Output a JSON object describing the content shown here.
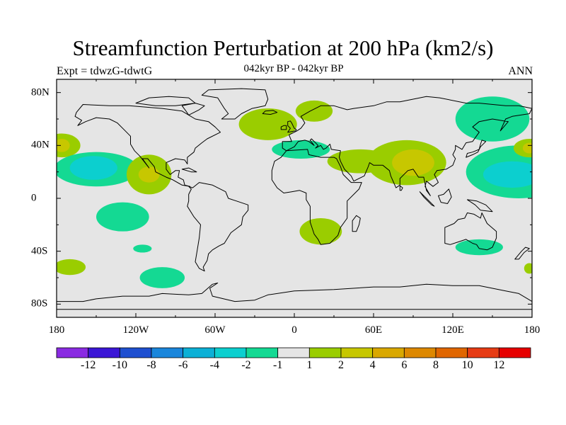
{
  "title": "Streamfunction Perturbation at 200 hPa (km2/s)",
  "subtitle_left": "Expt = tdwzG-tdwtG",
  "subtitle_center": "042kyr BP - 042kyr BP",
  "subtitle_right": "ANN",
  "map": {
    "background_color": "#e5e5e5",
    "lon_range": [
      -180,
      180
    ],
    "lat_range": [
      -90,
      90
    ],
    "x_ticks": [
      {
        "lon": -180,
        "label": "180"
      },
      {
        "lon": -120,
        "label": "120W"
      },
      {
        "lon": -60,
        "label": "60W"
      },
      {
        "lon": 0,
        "label": "0"
      },
      {
        "lon": 60,
        "label": "60E"
      },
      {
        "lon": 120,
        "label": "120E"
      },
      {
        "lon": 180,
        "label": "180"
      }
    ],
    "y_ticks": [
      {
        "lat": 80,
        "label": "80N"
      },
      {
        "lat": 40,
        "label": "40N"
      },
      {
        "lat": 0,
        "label": "0"
      },
      {
        "lat": -40,
        "label": "40S"
      },
      {
        "lat": -80,
        "label": "80S"
      }
    ]
  },
  "colorbar": {
    "colors": [
      "#8a2be2",
      "#3b16d6",
      "#1e4fd0",
      "#1a86db",
      "#0cb0d6",
      "#0ccfcf",
      "#14d993",
      "#e5e5e5",
      "#9acd00",
      "#c7c700",
      "#d9a800",
      "#dd8800",
      "#e06600",
      "#e63b14",
      "#e60000"
    ],
    "labels": [
      "-12",
      "-10",
      "-8",
      "-6",
      "-4",
      "-2",
      "-1",
      "1",
      "2",
      "4",
      "6",
      "8",
      "10",
      "12"
    ]
  },
  "anomalies": [
    {
      "lon": -176,
      "lat": 40,
      "rlon": 14,
      "rlat": 9,
      "level": 2
    },
    {
      "lon": -176,
      "lat": 40,
      "rlon": 6,
      "rlat": 5,
      "level": 4
    },
    {
      "lon": -150,
      "lat": 22,
      "rlon": 32,
      "rlat": 13,
      "level": -1
    },
    {
      "lon": -152,
      "lat": 23,
      "rlon": 18,
      "rlat": 9,
      "level": -2
    },
    {
      "lon": -110,
      "lat": 18,
      "rlon": 17,
      "rlat": 15,
      "level": 2
    },
    {
      "lon": -110,
      "lat": 18,
      "rlon": 8,
      "rlat": 6,
      "level": 4
    },
    {
      "lon": -130,
      "lat": -14,
      "rlon": 20,
      "rlat": 11,
      "level": -1
    },
    {
      "lon": -115,
      "lat": -38,
      "rlon": 7,
      "rlat": 3,
      "level": -1
    },
    {
      "lon": -170,
      "lat": -52,
      "rlon": 12,
      "rlat": 6,
      "level": 2
    },
    {
      "lon": -100,
      "lat": -60,
      "rlon": 17,
      "rlat": 8,
      "level": -1
    },
    {
      "lon": -20,
      "lat": 56,
      "rlon": 22,
      "rlat": 12,
      "level": 2
    },
    {
      "lon": 15,
      "lat": 66,
      "rlon": 14,
      "rlat": 8,
      "level": 2
    },
    {
      "lon": 5,
      "lat": 37,
      "rlon": 22,
      "rlat": 7,
      "level": -1
    },
    {
      "lon": 50,
      "lat": 28,
      "rlon": 25,
      "rlat": 9,
      "level": 2
    },
    {
      "lon": 85,
      "lat": 27,
      "rlon": 30,
      "rlat": 17,
      "level": 2
    },
    {
      "lon": 90,
      "lat": 27,
      "rlon": 16,
      "rlat": 10,
      "level": 4
    },
    {
      "lon": 150,
      "lat": 60,
      "rlon": 28,
      "rlat": 17,
      "level": -1
    },
    {
      "lon": 20,
      "lat": -25,
      "rlon": 16,
      "rlat": 10,
      "level": 2
    },
    {
      "lon": 170,
      "lat": 20,
      "rlon": 40,
      "rlat": 20,
      "level": -1
    },
    {
      "lon": 165,
      "lat": 18,
      "rlon": 22,
      "rlat": 10,
      "level": -2
    },
    {
      "lon": 178,
      "lat": 38,
      "rlon": 12,
      "rlat": 7,
      "level": 2
    },
    {
      "lon": 178,
      "lat": 38,
      "rlon": 5,
      "rlat": 4,
      "level": 4
    },
    {
      "lon": 140,
      "lat": -37,
      "rlon": 18,
      "rlat": 6,
      "level": -1
    },
    {
      "lon": 178,
      "lat": -53,
      "rlon": 4,
      "rlat": 4,
      "level": 2
    }
  ],
  "level_colors": {
    "-2": "#0ccfcf",
    "-1": "#14d993",
    "2": "#9acd00",
    "4": "#c7c700"
  },
  "continents": {
    "north_america": [
      [
        -165,
        65
      ],
      [
        -160,
        71
      ],
      [
        -140,
        70
      ],
      [
        -125,
        70
      ],
      [
        -100,
        68
      ],
      [
        -85,
        66
      ],
      [
        -80,
        63
      ],
      [
        -75,
        60
      ],
      [
        -65,
        58
      ],
      [
        -60,
        54
      ],
      [
        -56,
        50
      ],
      [
        -66,
        45
      ],
      [
        -70,
        42
      ],
      [
        -75,
        38
      ],
      [
        -76,
        35
      ],
      [
        -81,
        31
      ],
      [
        -81,
        26
      ],
      [
        -83,
        29
      ],
      [
        -90,
        30
      ],
      [
        -97,
        27
      ],
      [
        -97,
        22
      ],
      [
        -94,
        18
      ],
      [
        -90,
        21
      ],
      [
        -87,
        21
      ],
      [
        -88,
        16
      ],
      [
        -84,
        14
      ],
      [
        -83,
        10
      ],
      [
        -79,
        9
      ],
      [
        -85,
        10
      ],
      [
        -92,
        14
      ],
      [
        -97,
        16
      ],
      [
        -105,
        20
      ],
      [
        -106,
        24
      ],
      [
        -111,
        30
      ],
      [
        -115,
        30
      ],
      [
        -110,
        23
      ],
      [
        -117,
        32
      ],
      [
        -121,
        36
      ],
      [
        -124,
        41
      ],
      [
        -124,
        47
      ],
      [
        -128,
        51
      ],
      [
        -134,
        57
      ],
      [
        -140,
        60
      ],
      [
        -150,
        61
      ],
      [
        -158,
        58
      ],
      [
        -164,
        55
      ],
      [
        -161,
        59
      ],
      [
        -166,
        62
      ]
    ],
    "greenland": [
      [
        -55,
        60
      ],
      [
        -50,
        64
      ],
      [
        -53,
        68
      ],
      [
        -58,
        76
      ],
      [
        -70,
        78
      ],
      [
        -65,
        82
      ],
      [
        -40,
        83
      ],
      [
        -22,
        82
      ],
      [
        -20,
        75
      ],
      [
        -22,
        70
      ],
      [
        -32,
        68
      ],
      [
        -40,
        64
      ],
      [
        -45,
        60
      ]
    ],
    "south_america": [
      [
        -80,
        9
      ],
      [
        -77,
        8
      ],
      [
        -72,
        12
      ],
      [
        -62,
        10
      ],
      [
        -52,
        5
      ],
      [
        -50,
        0
      ],
      [
        -44,
        -2
      ],
      [
        -35,
        -5
      ],
      [
        -35,
        -9
      ],
      [
        -39,
        -14
      ],
      [
        -40,
        -20
      ],
      [
        -44,
        -23
      ],
      [
        -48,
        -26
      ],
      [
        -53,
        -34
      ],
      [
        -57,
        -36
      ],
      [
        -62,
        -39
      ],
      [
        -65,
        -42
      ],
      [
        -66,
        -47
      ],
      [
        -69,
        -52
      ],
      [
        -68,
        -55
      ],
      [
        -72,
        -53
      ],
      [
        -75,
        -48
      ],
      [
        -74,
        -42
      ],
      [
        -72,
        -30
      ],
      [
        -71,
        -20
      ],
      [
        -76,
        -14
      ],
      [
        -81,
        -6
      ],
      [
        -80,
        -2
      ],
      [
        -80,
        3
      ],
      [
        -78,
        7
      ]
    ],
    "africa": [
      [
        -17,
        21
      ],
      [
        -15,
        28
      ],
      [
        -10,
        31
      ],
      [
        -6,
        36
      ],
      [
        10,
        37
      ],
      [
        11,
        33
      ],
      [
        20,
        31
      ],
      [
        30,
        31
      ],
      [
        32,
        30
      ],
      [
        35,
        24
      ],
      [
        37,
        18
      ],
      [
        43,
        12
      ],
      [
        51,
        12
      ],
      [
        49,
        7
      ],
      [
        40,
        -2
      ],
      [
        40,
        -10
      ],
      [
        40,
        -15
      ],
      [
        35,
        -22
      ],
      [
        33,
        -28
      ],
      [
        27,
        -34
      ],
      [
        20,
        -35
      ],
      [
        18,
        -31
      ],
      [
        15,
        -27
      ],
      [
        12,
        -18
      ],
      [
        12,
        -6
      ],
      [
        9,
        -1
      ],
      [
        9,
        4
      ],
      [
        4,
        6
      ],
      [
        -2,
        5
      ],
      [
        -8,
        4
      ],
      [
        -13,
        8
      ],
      [
        -17,
        14
      ]
    ],
    "eurasia": [
      [
        -9,
        38
      ],
      [
        -9,
        43
      ],
      [
        -2,
        43
      ],
      [
        -4,
        48
      ],
      [
        2,
        51
      ],
      [
        5,
        53
      ],
      [
        8,
        57
      ],
      [
        5,
        62
      ],
      [
        12,
        66
      ],
      [
        20,
        70
      ],
      [
        30,
        70
      ],
      [
        40,
        67
      ],
      [
        45,
        68
      ],
      [
        60,
        70
      ],
      [
        70,
        73
      ],
      [
        80,
        73
      ],
      [
        100,
        77
      ],
      [
        110,
        76
      ],
      [
        130,
        72
      ],
      [
        140,
        72
      ],
      [
        160,
        70
      ],
      [
        170,
        70
      ],
      [
        180,
        68
      ],
      [
        178,
        64
      ],
      [
        165,
        62
      ],
      [
        160,
        60
      ],
      [
        156,
        51
      ],
      [
        162,
        58
      ],
      [
        150,
        60
      ],
      [
        140,
        58
      ],
      [
        135,
        54
      ],
      [
        140,
        50
      ],
      [
        135,
        43
      ],
      [
        130,
        42
      ],
      [
        127,
        37
      ],
      [
        122,
        40
      ],
      [
        122,
        37
      ],
      [
        120,
        33
      ],
      [
        122,
        30
      ],
      [
        120,
        25
      ],
      [
        115,
        22
      ],
      [
        108,
        21
      ],
      [
        106,
        18
      ],
      [
        109,
        12
      ],
      [
        105,
        9
      ],
      [
        100,
        13
      ],
      [
        99,
        9
      ],
      [
        103,
        2
      ],
      [
        100,
        6
      ],
      [
        98,
        16
      ],
      [
        94,
        16
      ],
      [
        90,
        22
      ],
      [
        86,
        21
      ],
      [
        80,
        15
      ],
      [
        80,
        10
      ],
      [
        77,
        8
      ],
      [
        73,
        17
      ],
      [
        72,
        21
      ],
      [
        67,
        25
      ],
      [
        60,
        25
      ],
      [
        57,
        27
      ],
      [
        56,
        24
      ],
      [
        53,
        17
      ],
      [
        45,
        13
      ],
      [
        43,
        17
      ],
      [
        38,
        22
      ],
      [
        35,
        28
      ],
      [
        34,
        31
      ],
      [
        35,
        36
      ],
      [
        28,
        37
      ],
      [
        27,
        41
      ],
      [
        24,
        38
      ],
      [
        22,
        37
      ],
      [
        20,
        40
      ],
      [
        16,
        38
      ],
      [
        18,
        40
      ],
      [
        13,
        45
      ],
      [
        12,
        44
      ],
      [
        15,
        40
      ],
      [
        11,
        43
      ],
      [
        8,
        44
      ],
      [
        3,
        43
      ],
      [
        0,
        39
      ],
      [
        -6,
        36
      ]
    ],
    "australia": [
      [
        114,
        -22
      ],
      [
        114,
        -34
      ],
      [
        118,
        -35
      ],
      [
        124,
        -33
      ],
      [
        130,
        -31
      ],
      [
        135,
        -34
      ],
      [
        138,
        -35
      ],
      [
        140,
        -38
      ],
      [
        146,
        -39
      ],
      [
        150,
        -37
      ],
      [
        153,
        -30
      ],
      [
        153,
        -25
      ],
      [
        146,
        -19
      ],
      [
        142,
        -11
      ],
      [
        141,
        -15
      ],
      [
        136,
        -12
      ],
      [
        131,
        -11
      ],
      [
        129,
        -15
      ],
      [
        124,
        -16
      ],
      [
        121,
        -19
      ]
    ],
    "antarctica": [
      [
        -180,
        -84
      ],
      [
        -180,
        -78
      ],
      [
        -160,
        -78
      ],
      [
        -150,
        -76
      ],
      [
        -130,
        -74
      ],
      [
        -110,
        -74
      ],
      [
        -100,
        -72
      ],
      [
        -80,
        -73
      ],
      [
        -70,
        -72
      ],
      [
        -62,
        -65
      ],
      [
        -58,
        -64
      ],
      [
        -64,
        -68
      ],
      [
        -62,
        -74
      ],
      [
        -45,
        -78
      ],
      [
        -30,
        -77
      ],
      [
        -20,
        -73
      ],
      [
        0,
        -70
      ],
      [
        30,
        -69
      ],
      [
        60,
        -67
      ],
      [
        80,
        -67
      ],
      [
        100,
        -65
      ],
      [
        120,
        -66
      ],
      [
        140,
        -66
      ],
      [
        160,
        -70
      ],
      [
        170,
        -72
      ],
      [
        180,
        -78
      ],
      [
        180,
        -84
      ]
    ],
    "uk": [
      [
        -5,
        50
      ],
      [
        -3,
        53
      ],
      [
        -5,
        55
      ],
      [
        -5,
        58
      ],
      [
        -3,
        58.5
      ],
      [
        -2,
        57
      ],
      [
        -1,
        55
      ],
      [
        0,
        53
      ],
      [
        1.5,
        52
      ],
      [
        1,
        51
      ]
    ],
    "ireland": [
      [
        -10,
        52
      ],
      [
        -10,
        54
      ],
      [
        -8,
        55
      ],
      [
        -6,
        55
      ],
      [
        -6,
        52
      ]
    ],
    "iceland": [
      [
        -24,
        64
      ],
      [
        -22,
        66
      ],
      [
        -16,
        66.5
      ],
      [
        -13,
        65
      ],
      [
        -18,
        63.5
      ]
    ],
    "japan": [
      [
        130,
        31
      ],
      [
        131,
        34
      ],
      [
        135,
        35
      ],
      [
        140,
        37
      ],
      [
        141,
        41
      ],
      [
        142,
        44
      ],
      [
        145,
        43
      ],
      [
        141,
        39
      ],
      [
        139,
        35
      ],
      [
        135,
        33
      ]
    ],
    "madagascar": [
      [
        44,
        -25
      ],
      [
        44,
        -17
      ],
      [
        47,
        -13
      ],
      [
        50,
        -15
      ],
      [
        49,
        -20
      ],
      [
        47,
        -25
      ]
    ],
    "new_zealand": [
      [
        167,
        -46
      ],
      [
        170,
        -46
      ],
      [
        174,
        -41
      ],
      [
        178,
        -38
      ],
      [
        175,
        -37
      ],
      [
        172,
        -40
      ]
    ],
    "borneo": [
      [
        109,
        2
      ],
      [
        111,
        -3
      ],
      [
        116,
        -4
      ],
      [
        119,
        1
      ],
      [
        117,
        7
      ],
      [
        113,
        3
      ]
    ],
    "sumatra": [
      [
        95,
        5
      ],
      [
        100,
        0
      ],
      [
        106,
        -6
      ],
      [
        104,
        -5
      ],
      [
        98,
        1
      ]
    ],
    "new_guinea": [
      [
        131,
        -1
      ],
      [
        138,
        -2
      ],
      [
        145,
        -5
      ],
      [
        150,
        -10
      ],
      [
        141,
        -9
      ],
      [
        137,
        -5
      ]
    ],
    "cuba": [
      [
        -85,
        22
      ],
      [
        -80,
        23
      ],
      [
        -74,
        20
      ],
      [
        -78,
        20
      ]
    ],
    "sri_lanka": [
      [
        80,
        6
      ],
      [
        80,
        9.5
      ],
      [
        82,
        8
      ],
      [
        81,
        6
      ]
    ],
    "arctic_islands": [
      [
        -120,
        72
      ],
      [
        -110,
        76
      ],
      [
        -95,
        77
      ],
      [
        -80,
        76
      ],
      [
        -75,
        72
      ],
      [
        -90,
        70
      ],
      [
        -105,
        70
      ]
    ],
    "baffin": [
      [
        -80,
        63
      ],
      [
        -72,
        67
      ],
      [
        -68,
        70
      ],
      [
        -75,
        72
      ],
      [
        -85,
        70
      ],
      [
        -82,
        66
      ]
    ]
  }
}
